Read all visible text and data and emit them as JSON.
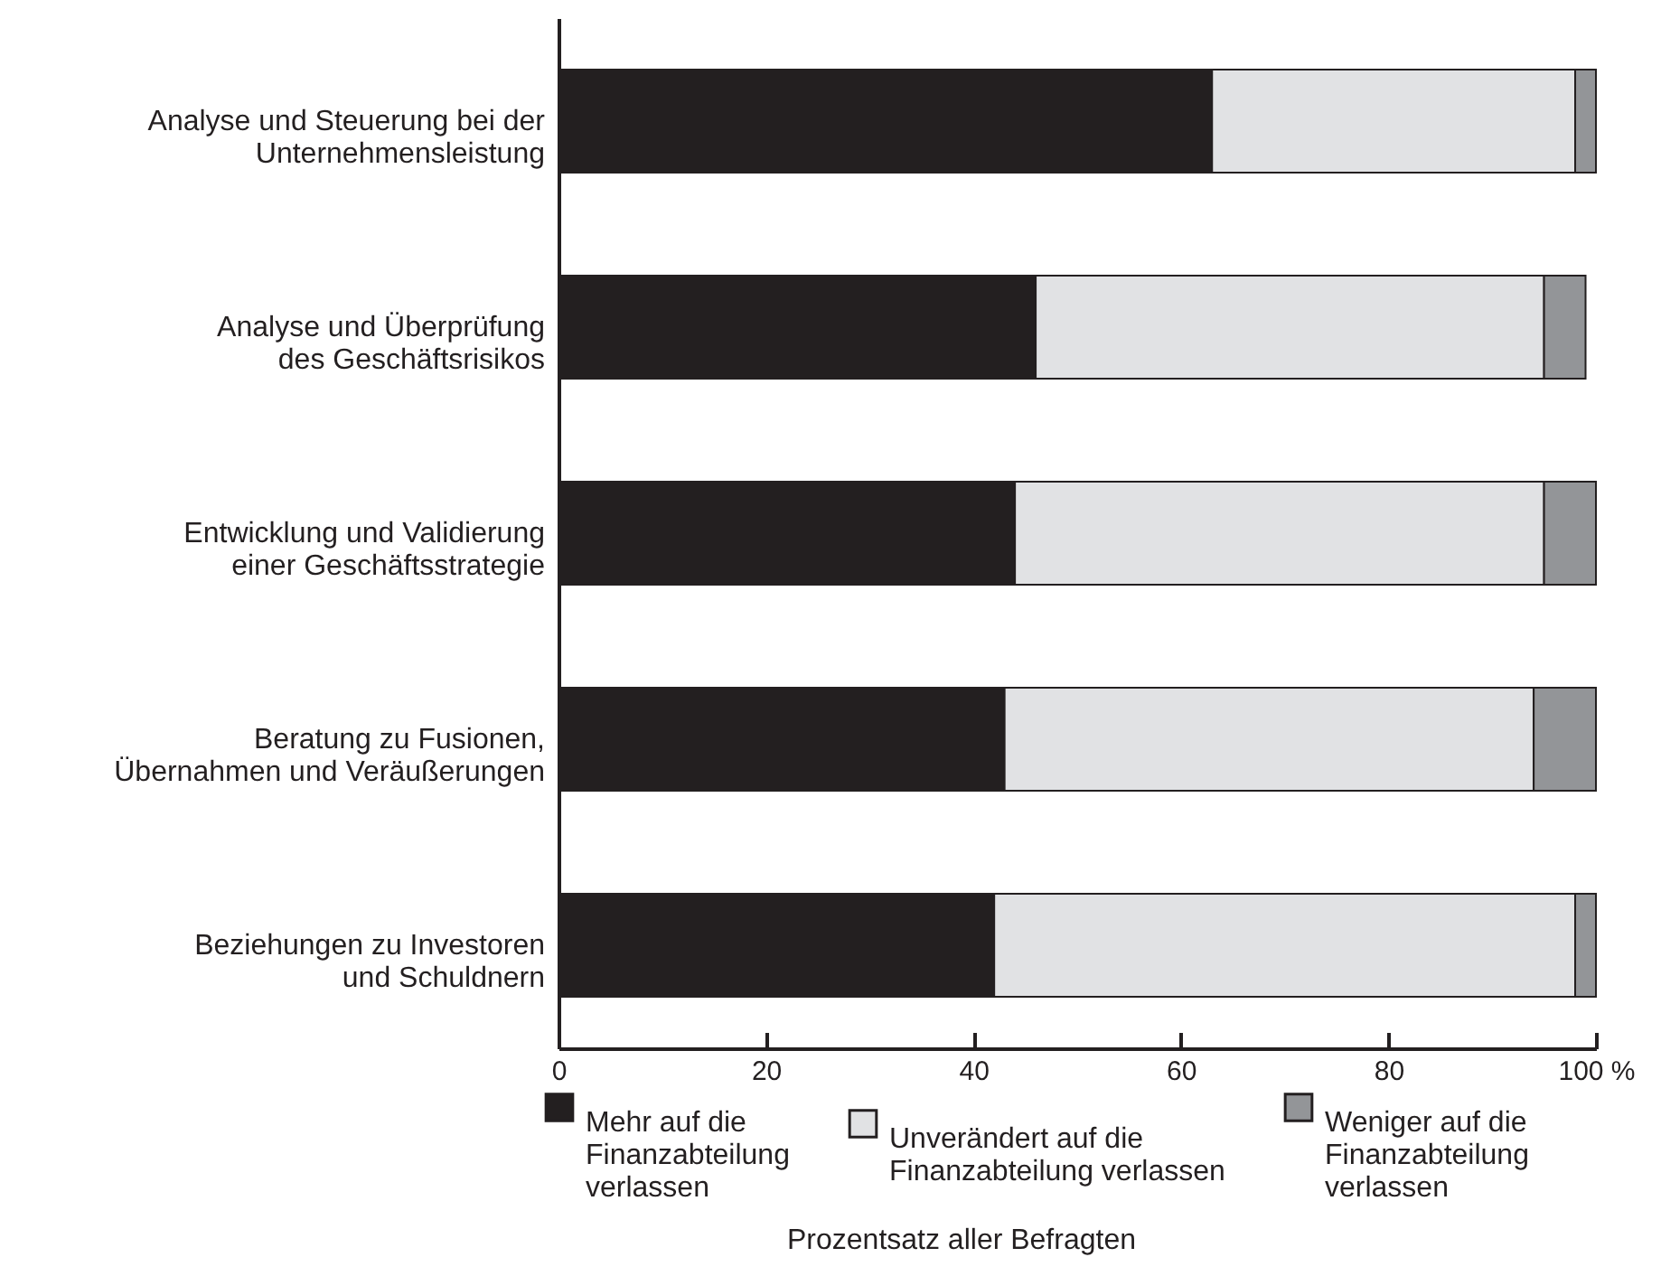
{
  "chart_data": {
    "type": "bar",
    "orientation": "horizontal",
    "stacked": true,
    "categories": [
      "Analyse und Steuerung bei der Unternehmensleistung",
      "Analyse und Überprüfung des Geschäftsrisikos",
      "Entwicklung und Validierung einer Geschäftsstrategie",
      "Beratung zu Fusionen, Übernahmen und Veräußerungen",
      "Beziehungen zu Investoren und Schuldnern"
    ],
    "series": [
      {
        "name": "Mehr auf die Finanzabteilung verlassen",
        "color": "#231f20",
        "values": [
          63,
          46,
          44,
          43,
          42
        ]
      },
      {
        "name": "Unverändert auf die Finanzabteilung verlassen",
        "color": "#e1e2e4",
        "values": [
          35,
          49,
          51,
          51,
          56
        ]
      },
      {
        "name": "Weniger auf die Finanzabteilung verlassen",
        "color": "#939598",
        "values": [
          2,
          4,
          5,
          6,
          2
        ]
      }
    ],
    "xlim": [
      0,
      100
    ],
    "xticks": [
      0,
      20,
      40,
      60,
      80,
      {
        "value": 100,
        "label": "100 %"
      }
    ],
    "annotations": [
      "Prozentsatz aller Befragten"
    ],
    "legend": "bottom",
    "grid": false
  }
}
